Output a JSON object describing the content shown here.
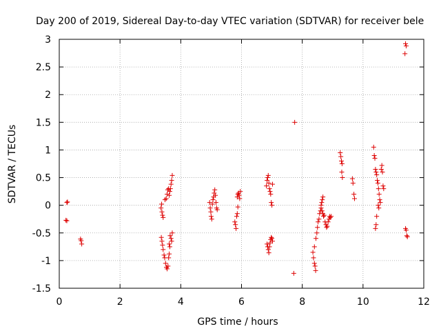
{
  "chart_data": {
    "type": "scatter",
    "title": "Day 200 of 2019, Sidereal Day-to-day VTEC variation (SDTVAR) for receiver bele",
    "xlabel": "GPS time / hours",
    "ylabel": "SDTVAR / TECUs",
    "xlim": [
      0,
      12
    ],
    "ylim": [
      -1.5,
      3
    ],
    "xticks": [
      0,
      2,
      4,
      6,
      8,
      10,
      12
    ],
    "yticks": [
      -1.5,
      -1,
      -0.5,
      0,
      0.5,
      1,
      1.5,
      2,
      2.5,
      3
    ],
    "xtick_labels": [
      "0",
      "2",
      "4",
      "6",
      "8",
      "10",
      "12"
    ],
    "ytick_labels": [
      "-1.5",
      "-1",
      "-0.5",
      "0",
      "0.5",
      "1",
      "1.5",
      "2",
      "2.5",
      "3"
    ],
    "grid": true,
    "marker": "+",
    "marker_color": "#dd0000",
    "series": [
      {
        "name": "SDTVAR",
        "points": [
          [
            0.25,
            0.05
          ],
          [
            0.27,
            0.06
          ],
          [
            0.22,
            -0.27
          ],
          [
            0.25,
            -0.28
          ],
          [
            0.7,
            -0.61
          ],
          [
            0.72,
            -0.64
          ],
          [
            0.74,
            -0.7
          ],
          [
            3.35,
            -0.05
          ],
          [
            3.37,
            0.02
          ],
          [
            3.38,
            -0.12
          ],
          [
            3.4,
            -0.18
          ],
          [
            3.42,
            -0.22
          ],
          [
            3.36,
            -0.58
          ],
          [
            3.38,
            -0.65
          ],
          [
            3.4,
            -0.72
          ],
          [
            3.42,
            -0.8
          ],
          [
            3.45,
            -0.9
          ],
          [
            3.47,
            -0.95
          ],
          [
            3.5,
            -1.05
          ],
          [
            3.53,
            -1.12
          ],
          [
            3.55,
            -1.15
          ],
          [
            3.58,
            -1.1
          ],
          [
            3.6,
            -0.95
          ],
          [
            3.62,
            -0.88
          ],
          [
            3.48,
            0.1
          ],
          [
            3.52,
            0.12
          ],
          [
            3.55,
            0.2
          ],
          [
            3.57,
            0.28
          ],
          [
            3.6,
            0.3
          ],
          [
            3.62,
            0.18
          ],
          [
            3.64,
            0.25
          ],
          [
            3.66,
            0.3
          ],
          [
            3.68,
            0.38
          ],
          [
            3.7,
            0.45
          ],
          [
            3.72,
            0.54
          ],
          [
            3.65,
            -0.55
          ],
          [
            3.68,
            -0.6
          ],
          [
            3.7,
            -0.65
          ],
          [
            3.72,
            -0.5
          ],
          [
            3.62,
            -0.7
          ],
          [
            3.64,
            -0.75
          ],
          [
            4.95,
            0.05
          ],
          [
            4.97,
            -0.05
          ],
          [
            4.99,
            -0.12
          ],
          [
            5.0,
            -0.2
          ],
          [
            5.02,
            -0.25
          ],
          [
            5.04,
            0.02
          ],
          [
            5.06,
            0.1
          ],
          [
            5.08,
            0.15
          ],
          [
            5.1,
            0.22
          ],
          [
            5.12,
            0.28
          ],
          [
            5.14,
            0.18
          ],
          [
            5.16,
            0.05
          ],
          [
            5.18,
            -0.05
          ],
          [
            5.2,
            -0.08
          ],
          [
            5.78,
            -0.3
          ],
          [
            5.8,
            -0.35
          ],
          [
            5.82,
            -0.42
          ],
          [
            5.84,
            -0.2
          ],
          [
            5.86,
            -0.15
          ],
          [
            5.88,
            -0.03
          ],
          [
            5.86,
            0.15
          ],
          [
            5.88,
            0.2
          ],
          [
            5.9,
            0.22
          ],
          [
            5.92,
            0.18
          ],
          [
            5.94,
            0.12
          ],
          [
            5.96,
            0.25
          ],
          [
            6.82,
            0.35
          ],
          [
            6.84,
            0.45
          ],
          [
            6.86,
            0.5
          ],
          [
            6.88,
            0.54
          ],
          [
            6.9,
            0.4
          ],
          [
            6.92,
            0.3
          ],
          [
            6.94,
            0.25
          ],
          [
            6.96,
            0.2
          ],
          [
            6.98,
            0.05
          ],
          [
            7.0,
            0.0
          ],
          [
            7.02,
            0.38
          ],
          [
            6.84,
            -0.7
          ],
          [
            6.86,
            -0.75
          ],
          [
            6.88,
            -0.8
          ],
          [
            6.9,
            -0.86
          ],
          [
            6.92,
            -0.75
          ],
          [
            6.94,
            -0.68
          ],
          [
            6.96,
            -0.62
          ],
          [
            6.98,
            -0.58
          ],
          [
            7.0,
            -0.6
          ],
          [
            7.02,
            -0.65
          ],
          [
            7.75,
            1.5
          ],
          [
            7.72,
            -1.23
          ],
          [
            8.35,
            -0.85
          ],
          [
            8.37,
            -0.95
          ],
          [
            8.4,
            -1.05
          ],
          [
            8.42,
            -1.1
          ],
          [
            8.44,
            -1.18
          ],
          [
            8.4,
            -0.75
          ],
          [
            8.45,
            -0.6
          ],
          [
            8.48,
            -0.5
          ],
          [
            8.5,
            -0.4
          ],
          [
            8.52,
            -0.3
          ],
          [
            8.55,
            -0.25
          ],
          [
            8.57,
            -0.15
          ],
          [
            8.6,
            -0.1
          ],
          [
            8.62,
            0.0
          ],
          [
            8.64,
            0.05
          ],
          [
            8.66,
            0.1
          ],
          [
            8.68,
            0.15
          ],
          [
            8.62,
            -0.05
          ],
          [
            8.65,
            -0.1
          ],
          [
            8.68,
            -0.15
          ],
          [
            8.7,
            -0.2
          ],
          [
            8.72,
            -0.18
          ],
          [
            8.75,
            -0.3
          ],
          [
            8.78,
            -0.35
          ],
          [
            8.8,
            -0.4
          ],
          [
            8.82,
            -0.38
          ],
          [
            8.85,
            -0.3
          ],
          [
            8.88,
            -0.25
          ],
          [
            8.9,
            -0.2
          ],
          [
            8.92,
            -0.22
          ],
          [
            8.95,
            -0.2
          ],
          [
            9.25,
            0.95
          ],
          [
            9.27,
            0.88
          ],
          [
            9.29,
            0.8
          ],
          [
            9.31,
            0.75
          ],
          [
            9.3,
            0.6
          ],
          [
            9.32,
            0.5
          ],
          [
            9.65,
            0.48
          ],
          [
            9.67,
            0.4
          ],
          [
            9.7,
            0.2
          ],
          [
            9.72,
            0.12
          ],
          [
            10.35,
            1.05
          ],
          [
            10.37,
            0.9
          ],
          [
            10.39,
            0.85
          ],
          [
            10.41,
            0.65
          ],
          [
            10.43,
            0.6
          ],
          [
            10.45,
            0.55
          ],
          [
            10.47,
            0.45
          ],
          [
            10.49,
            0.4
          ],
          [
            10.51,
            0.3
          ],
          [
            10.53,
            0.2
          ],
          [
            10.55,
            0.1
          ],
          [
            10.57,
            0.05
          ],
          [
            10.45,
            -0.2
          ],
          [
            10.43,
            -0.35
          ],
          [
            10.41,
            -0.42
          ],
          [
            10.6,
            0.65
          ],
          [
            10.62,
            0.72
          ],
          [
            10.64,
            0.6
          ],
          [
            10.66,
            0.35
          ],
          [
            10.68,
            0.3
          ],
          [
            10.5,
            0.0
          ],
          [
            10.52,
            -0.05
          ],
          [
            11.4,
            2.92
          ],
          [
            11.42,
            2.88
          ],
          [
            11.38,
            2.74
          ],
          [
            11.4,
            -0.42
          ],
          [
            11.42,
            -0.45
          ],
          [
            11.44,
            -0.55
          ],
          [
            11.46,
            -0.57
          ]
        ]
      }
    ]
  }
}
